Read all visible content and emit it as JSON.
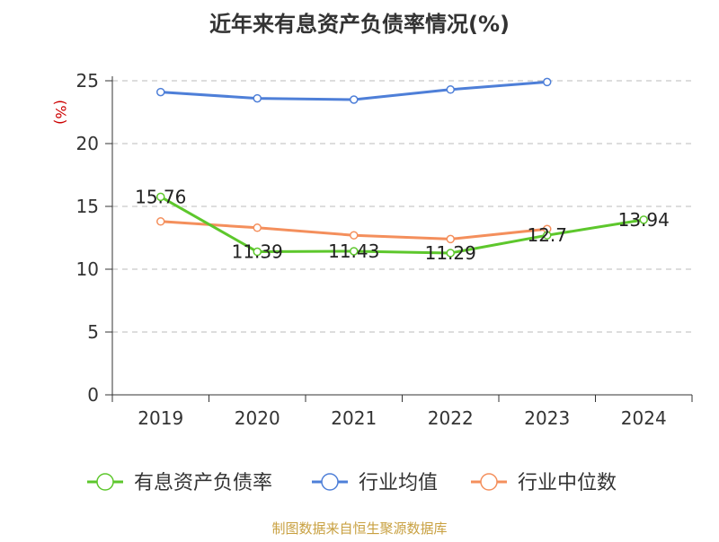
{
  "chart_data": {
    "type": "line",
    "title": "近年来有息资产负债率情况(%)",
    "ylabel": "(%)",
    "xlabel": "",
    "categories": [
      "2019",
      "2020",
      "2021",
      "2022",
      "2023",
      "2024"
    ],
    "ylim": [
      0,
      25
    ],
    "yticks": [
      0,
      5,
      10,
      15,
      20,
      25
    ],
    "grid": true,
    "legend_position": "bottom",
    "series": [
      {
        "name": "有息资产负债率",
        "color": "#5dc72c",
        "values": [
          15.76,
          11.39,
          11.43,
          11.29,
          12.7,
          13.94
        ],
        "labels": [
          "15.76",
          "11.39",
          "11.43",
          "11.29",
          "12.7",
          "13.94"
        ]
      },
      {
        "name": "行业均值",
        "color": "#4e7fd8",
        "values": [
          24.1,
          23.6,
          23.5,
          24.3,
          24.9,
          null
        ]
      },
      {
        "name": "行业中位数",
        "color": "#f48f5c",
        "values": [
          13.8,
          13.3,
          12.7,
          12.4,
          13.2,
          null
        ]
      }
    ]
  },
  "source": "制图数据来自恒生聚源数据库"
}
